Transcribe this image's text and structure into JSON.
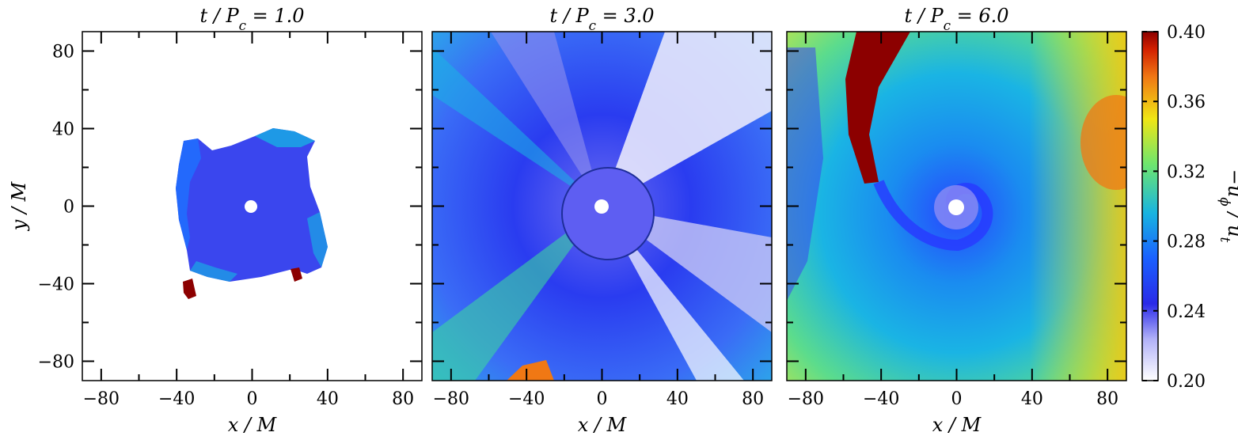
{
  "chart_data": {
    "type": "heatmap",
    "panels": [
      {
        "title": "t / P_c = 1.0",
        "xlabel": "x / M",
        "ylabel": "y / M",
        "xlim": [
          -90,
          90
        ],
        "ylim": [
          -90,
          90
        ],
        "xticks": [
          "−80",
          "−40",
          "0",
          "40",
          "80"
        ],
        "yticks": [
          "80",
          "40",
          "0",
          "−40",
          "−80"
        ]
      },
      {
        "title": "t / P_c = 3.0",
        "xlabel": "x / M",
        "ylabel": "",
        "xlim": [
          -90,
          90
        ],
        "ylim": [
          -90,
          90
        ],
        "xticks": [
          "−80",
          "−40",
          "0",
          "40",
          "80"
        ],
        "yticks": []
      },
      {
        "title": "t / P_c = 6.0",
        "xlabel": "x / M",
        "ylabel": "",
        "xlim": [
          -90,
          90
        ],
        "ylim": [
          -90,
          90
        ],
        "xticks": [
          "−80",
          "−40",
          "0",
          "40",
          "80"
        ],
        "yticks": []
      }
    ],
    "colorbar": {
      "label": "−u_ϕ / u_t",
      "range": [
        0.2,
        0.4
      ],
      "ticks": [
        "0.40",
        "0.36",
        "0.32",
        "0.28",
        "0.24",
        "0.20"
      ],
      "colormap": [
        "#ffffff",
        "#3030f0",
        "#1c64ff",
        "#14b4e0",
        "#6ee66e",
        "#f0e614",
        "#f07814",
        "#8c0000"
      ]
    }
  }
}
